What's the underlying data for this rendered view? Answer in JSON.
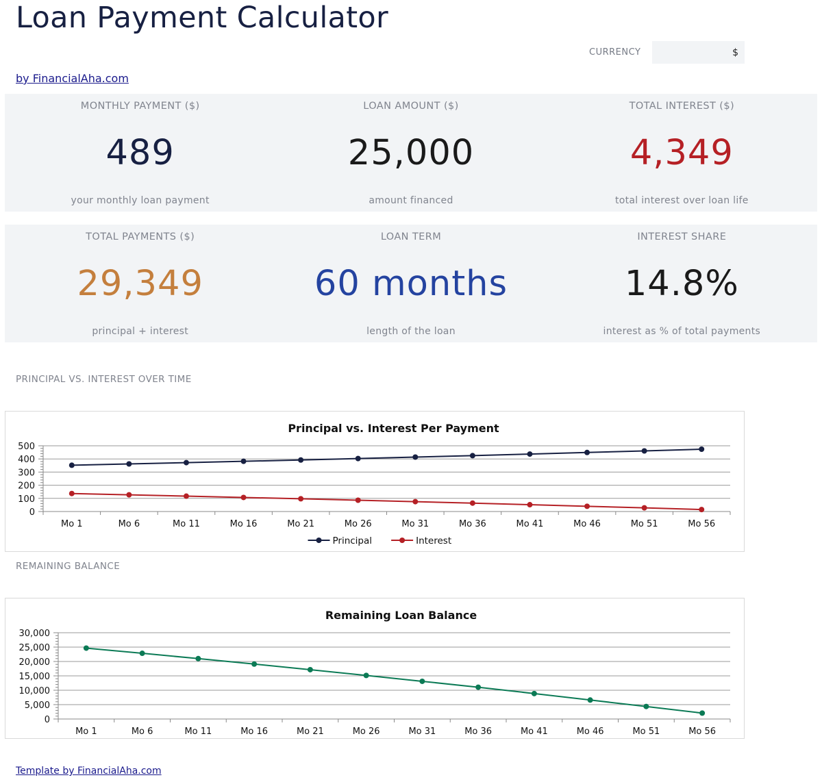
{
  "header": {
    "title": "Loan Payment Calculator",
    "currency_label": "CURRENCY",
    "currency_value": "$",
    "byline": "by FinancialAha.com"
  },
  "kpis": [
    {
      "label": "MONTHLY PAYMENT ($)",
      "value": "489",
      "sub": "your monthly loan payment",
      "color": "#172042"
    },
    {
      "label": "LOAN AMOUNT ($)",
      "value": "25,000",
      "sub": "amount financed",
      "color": "#1a1a1a"
    },
    {
      "label": "TOTAL INTEREST ($)",
      "value": "4,349",
      "sub": "total interest over loan life",
      "color": "#b52025"
    },
    {
      "label": "TOTAL PAYMENTS ($)",
      "value": "29,349",
      "sub": "principal + interest",
      "color": "#c47f3d"
    },
    {
      "label": "LOAN TERM",
      "value": "60 months",
      "sub": "length of the loan",
      "color": "#2443a0"
    },
    {
      "label": "INTEREST SHARE",
      "value": "14.8%",
      "sub": "interest as % of total payments",
      "color": "#1a1a1a"
    }
  ],
  "sections": {
    "principal_vs_interest": "PRINCIPAL VS. INTEREST OVER TIME",
    "remaining_balance": "REMAINING BALANCE"
  },
  "footer": {
    "link": "Template by FinancialAha.com"
  },
  "chart_data": [
    {
      "type": "line",
      "title": "Principal vs. Interest Per Payment",
      "categories": [
        "Mo 1",
        "Mo 6",
        "Mo 11",
        "Mo 16",
        "Mo 21",
        "Mo 26",
        "Mo 31",
        "Mo 36",
        "Mo 41",
        "Mo 46",
        "Mo 51",
        "Mo 56"
      ],
      "yticks": [
        "0",
        "100",
        "200",
        "300",
        "400",
        "500"
      ],
      "ylim": [
        0,
        500
      ],
      "grid": true,
      "legend": "bottom",
      "series": [
        {
          "name": "Principal",
          "color": "#172042",
          "values": [
            352,
            362,
            372,
            382,
            392,
            403,
            414,
            425,
            437,
            449,
            461,
            474
          ]
        },
        {
          "name": "Interest",
          "color": "#b52025",
          "values": [
            137,
            127,
            117,
            107,
            97,
            86,
            75,
            64,
            52,
            40,
            28,
            15
          ]
        }
      ]
    },
    {
      "type": "line",
      "title": "Remaining Loan Balance",
      "categories": [
        "Mo 1",
        "Mo 6",
        "Mo 11",
        "Mo 16",
        "Mo 21",
        "Mo 26",
        "Mo 31",
        "Mo 36",
        "Mo 41",
        "Mo 46",
        "Mo 51",
        "Mo 56"
      ],
      "yticks": [
        "0",
        "5,000",
        "10,000",
        "15,000",
        "20,000",
        "25,000",
        "30,000"
      ],
      "ylim": [
        0,
        30000
      ],
      "grid": true,
      "legend": "none",
      "series": [
        {
          "name": "",
          "color": "#0b7a55",
          "values": [
            24650,
            22850,
            21000,
            19100,
            17150,
            15150,
            13100,
            11050,
            8850,
            6600,
            4350,
            2050
          ]
        }
      ]
    }
  ]
}
